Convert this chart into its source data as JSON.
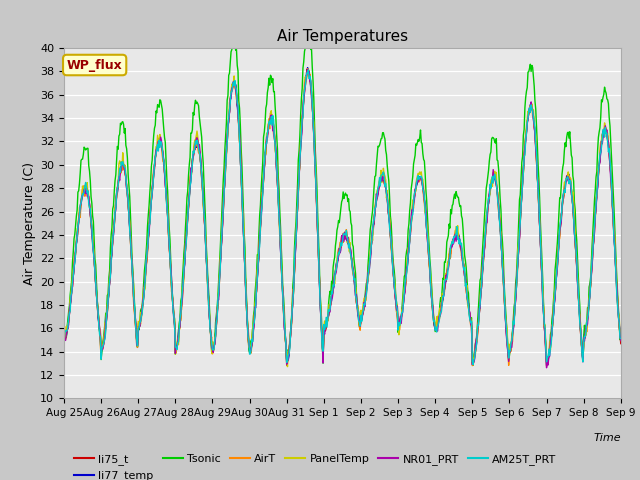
{
  "title": "Air Temperatures",
  "xlabel": "Time",
  "ylabel": "Air Temperature (C)",
  "ylim": [
    10,
    40
  ],
  "xtick_labels": [
    "Aug 25",
    "Aug 26",
    "Aug 27",
    "Aug 28",
    "Aug 29",
    "Aug 30",
    "Aug 31",
    "Sep 1",
    "Sep 2",
    "Sep 3",
    "Sep 4",
    "Sep 5",
    "Sep 6",
    "Sep 7",
    "Sep 8",
    "Sep 9"
  ],
  "series_colors": {
    "li75_t": "#cc0000",
    "li77_temp": "#0000cc",
    "Tsonic": "#00cc00",
    "AirT": "#ff8800",
    "PanelTemp": "#cccc00",
    "NR01_PRT": "#aa00aa",
    "AM25T_PRT": "#00cccc"
  },
  "annotation_text": "WP_flux",
  "annotation_color": "#990000",
  "annotation_bg": "#ffffcc",
  "annotation_border": "#ccaa00",
  "fig_bg": "#c8c8c8",
  "ax_bg": "#e8e8e8",
  "grid_color": "#ffffff",
  "day_peaks": [
    28,
    30,
    32,
    32,
    37,
    34,
    38,
    24,
    29,
    29,
    24,
    29,
    35,
    29,
    33
  ],
  "day_mins": [
    15,
    14,
    16,
    14,
    14,
    14,
    13,
    16,
    17,
    16,
    16,
    13,
    14,
    13,
    15
  ],
  "tsonic_extra_scale": 3.5,
  "n_days": 15,
  "points_per_day": 48
}
